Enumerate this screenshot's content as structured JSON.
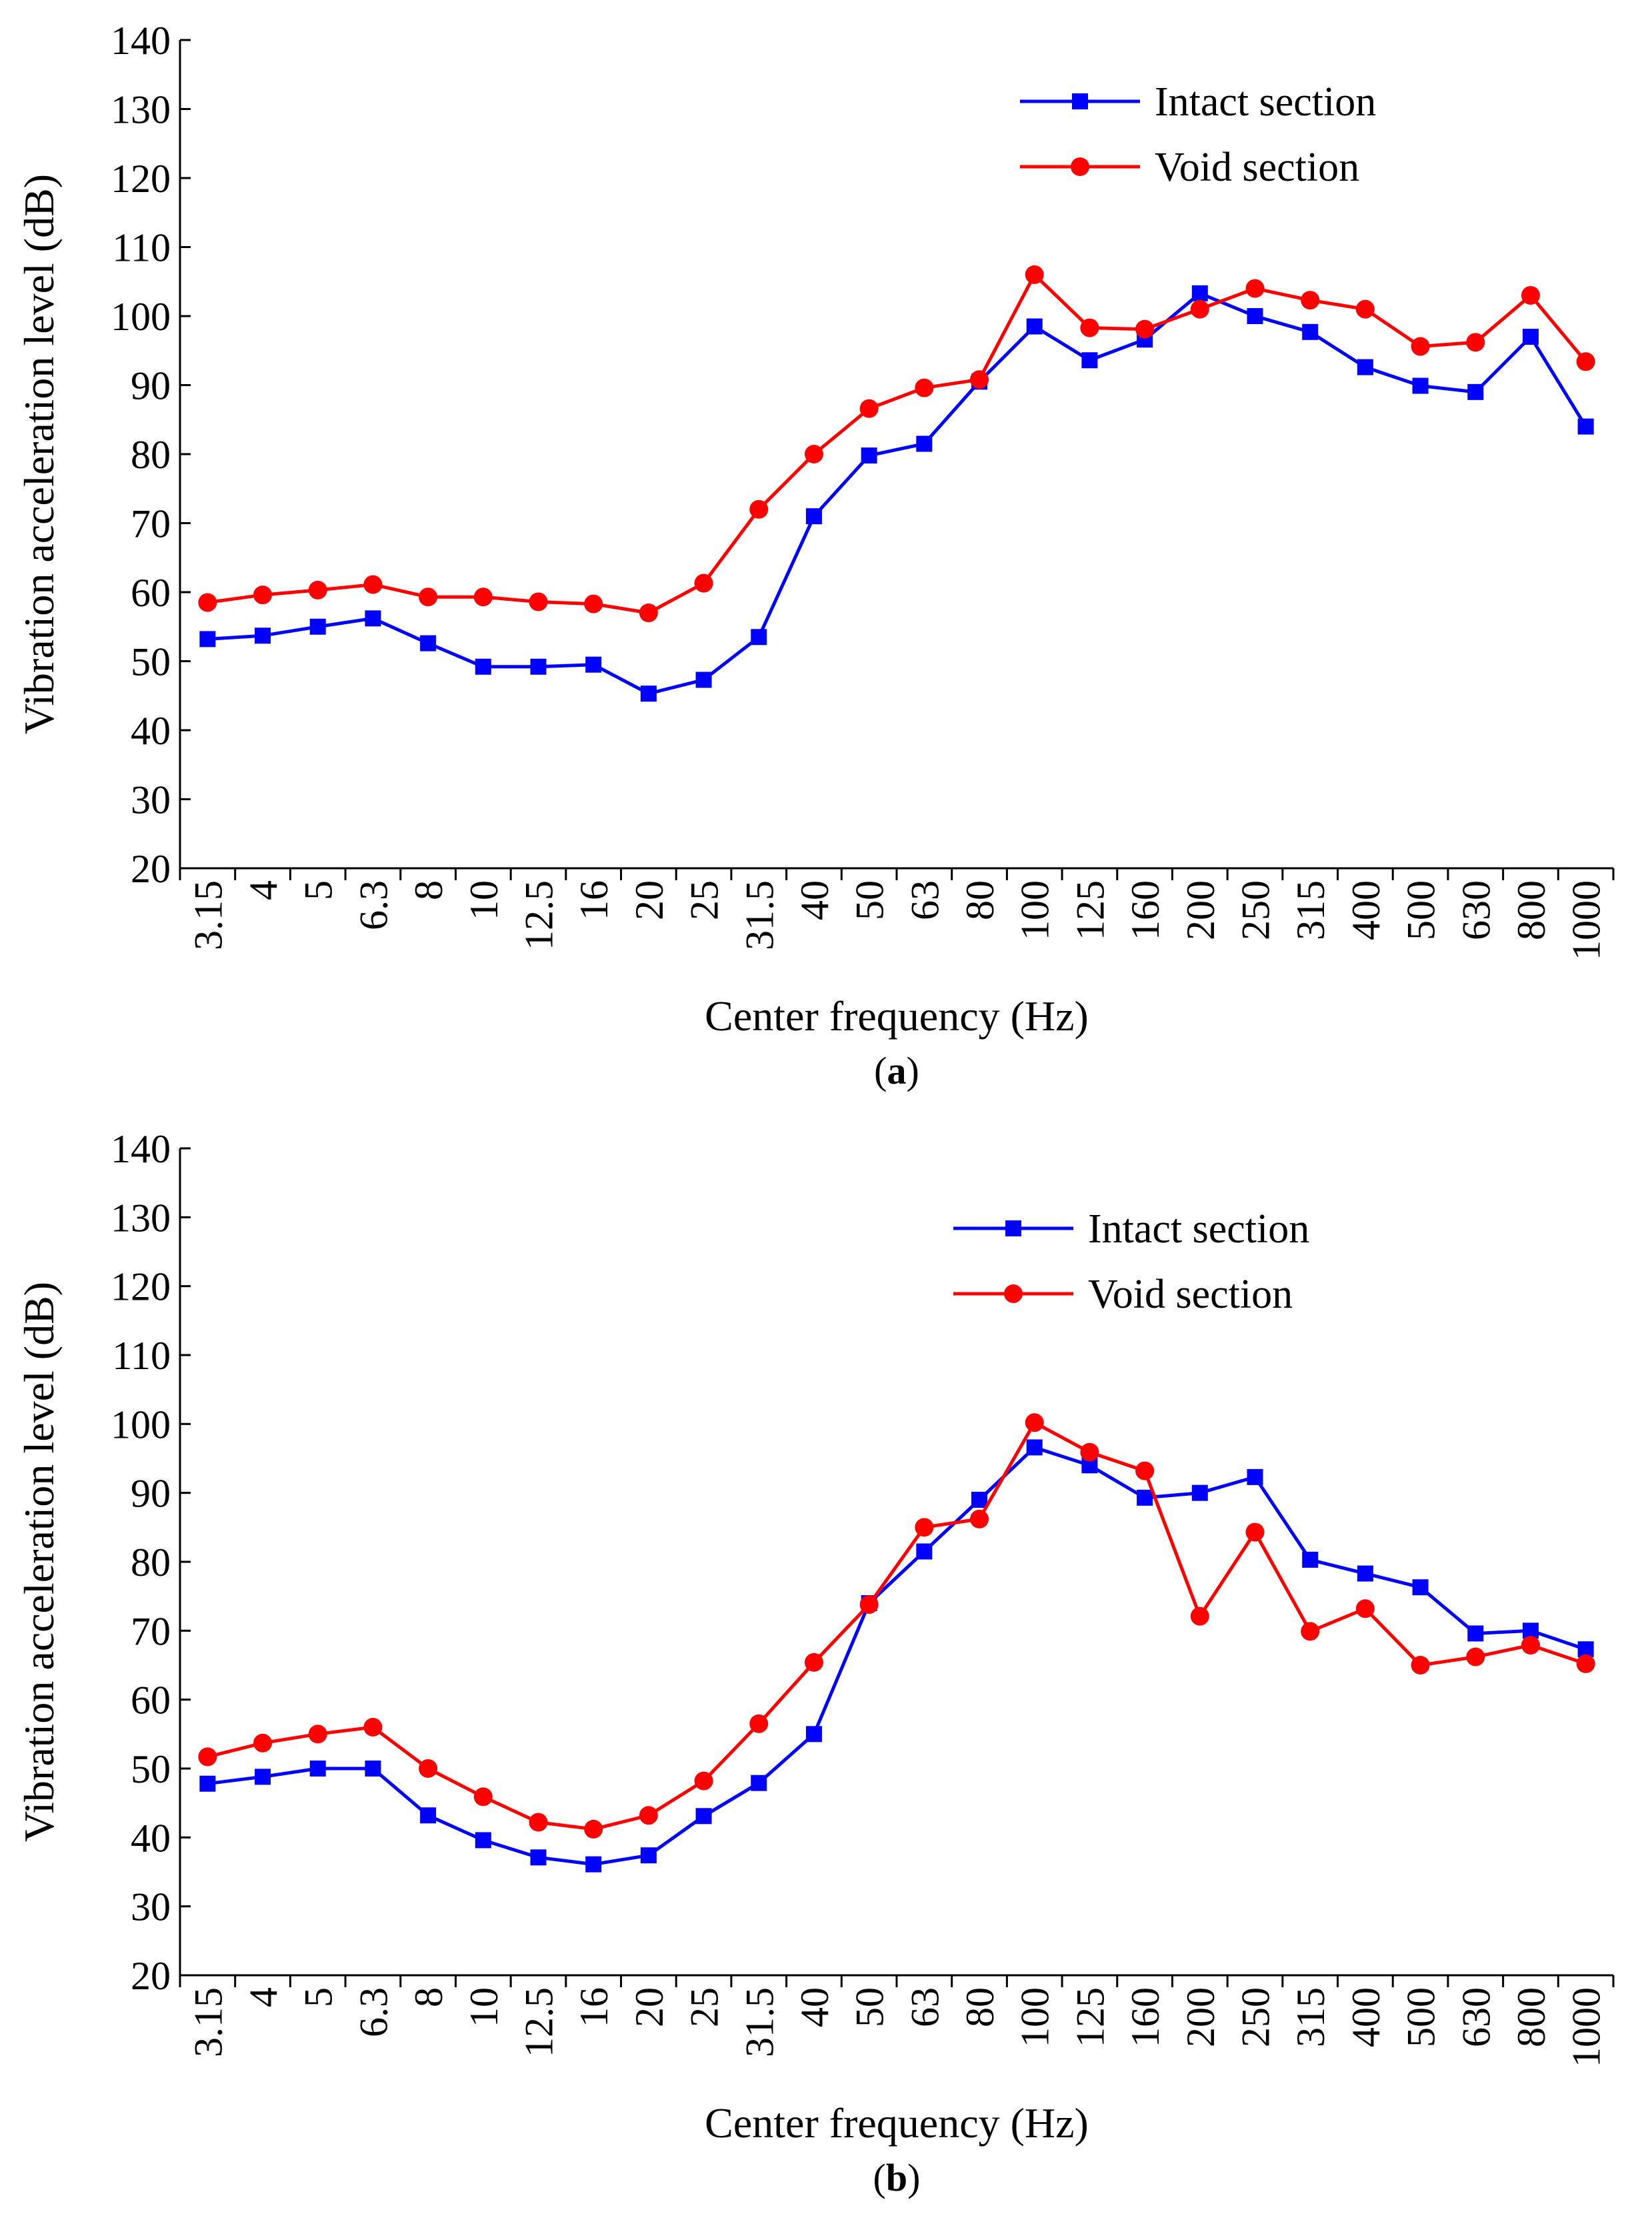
{
  "chart_data": [
    {
      "type": "line",
      "panel_label": "a",
      "xlabel": "Center frequency (Hz)",
      "ylabel": "Vibration acceleration level (dB)",
      "ylim": [
        20,
        140
      ],
      "yticks": [
        20,
        30,
        40,
        50,
        60,
        70,
        80,
        90,
        100,
        110,
        120,
        130,
        140
      ],
      "grid": false,
      "legend_position": "top-right",
      "categories": [
        "3.15",
        "4",
        "5",
        "6.3",
        "8",
        "10",
        "12.5",
        "16",
        "20",
        "25",
        "31.5",
        "40",
        "50",
        "63",
        "80",
        "100",
        "125",
        "160",
        "200",
        "250",
        "315",
        "400",
        "500",
        "630",
        "800",
        "1000"
      ],
      "series": [
        {
          "name": "Intact section",
          "color": "#0000ff",
          "marker": "square",
          "values": [
            53.2,
            53.7,
            55,
            56.2,
            52.6,
            49.2,
            49.2,
            49.5,
            45.3,
            47.3,
            53.5,
            71,
            79.8,
            81.5,
            90.5,
            98.5,
            93.6,
            96.6,
            103.3,
            100,
            97.7,
            92.6,
            89.9,
            89,
            97,
            84
          ]
        },
        {
          "name": "Void section",
          "color": "#ff0000",
          "marker": "circle",
          "values": [
            58.5,
            59.6,
            60.3,
            61.1,
            59.3,
            59.3,
            58.6,
            58.3,
            57,
            61.3,
            72,
            80,
            86.6,
            89.6,
            90.8,
            106,
            98.3,
            98.1,
            101,
            104,
            102.3,
            101,
            95.6,
            96.2,
            103,
            93.4
          ]
        }
      ]
    },
    {
      "type": "line",
      "panel_label": "b",
      "xlabel": "Center frequency (Hz)",
      "ylabel": "Vibration acceleration level (dB)",
      "ylim": [
        20,
        140
      ],
      "yticks": [
        20,
        30,
        40,
        50,
        60,
        70,
        80,
        90,
        100,
        110,
        120,
        130,
        140
      ],
      "grid": false,
      "legend_position": "top-right",
      "categories": [
        "3.15",
        "4",
        "5",
        "6.3",
        "8",
        "10",
        "12.5",
        "16",
        "20",
        "25",
        "31.5",
        "40",
        "50",
        "63",
        "80",
        "100",
        "125",
        "160",
        "200",
        "250",
        "315",
        "400",
        "500",
        "630",
        "800",
        "1000"
      ],
      "series": [
        {
          "name": "Intact section",
          "color": "#0000ff",
          "marker": "square",
          "values": [
            47.8,
            48.8,
            50,
            50,
            43.2,
            39.6,
            37.1,
            36.1,
            37.4,
            43.1,
            47.9,
            55,
            74,
            81.5,
            89,
            96.6,
            94,
            89.3,
            90,
            92.3,
            80.3,
            78.3,
            76.3,
            69.6,
            70,
            67.3
          ]
        },
        {
          "name": "Void section",
          "color": "#ff0000",
          "marker": "circle",
          "values": [
            51.7,
            53.7,
            55,
            56,
            50,
            45.9,
            42.2,
            41.2,
            43.2,
            48.2,
            56.5,
            65.4,
            73.8,
            85,
            86.2,
            100.2,
            95.9,
            93.2,
            72.1,
            84.3,
            69.9,
            73.2,
            65,
            66.2,
            67.9,
            65.2
          ]
        }
      ]
    }
  ]
}
